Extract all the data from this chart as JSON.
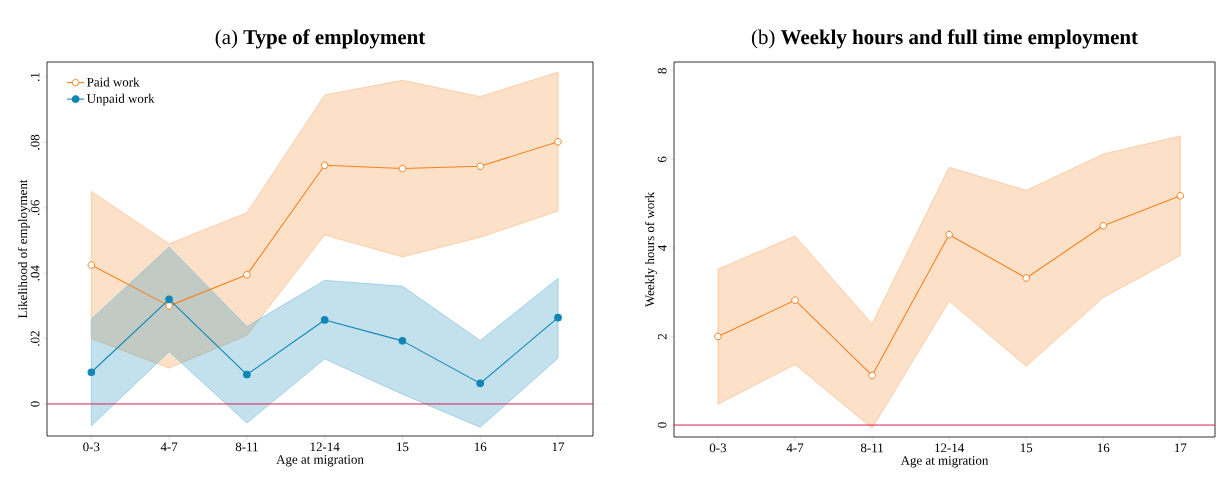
{
  "chart_data": [
    {
      "type": "line",
      "title": "(a) **Type of employment**",
      "xlabel": "Age at migration",
      "ylabel": "Likelihood of employment",
      "categories": [
        "0-3",
        "4-7",
        "8-11",
        "12-14",
        "15",
        "16",
        "17"
      ],
      "series": [
        {
          "name": "Paid work",
          "color": "#f58220",
          "values": [
            0.0425,
            0.03,
            0.0395,
            0.073,
            0.072,
            0.0727,
            0.0802
          ],
          "lower": [
            0.02,
            0.011,
            0.021,
            0.0517,
            0.045,
            0.051,
            0.059
          ],
          "upper": [
            0.065,
            0.049,
            0.0585,
            0.0945,
            0.099,
            0.094,
            0.1015
          ]
        },
        {
          "name": "Unpaid work",
          "color": "#0f86b6",
          "values": [
            0.0097,
            0.032,
            0.009,
            0.0257,
            0.0193,
            0.0063,
            0.0264
          ],
          "lower": [
            -0.0067,
            0.016,
            -0.0058,
            0.0138,
            0.003,
            -0.0071,
            0.014
          ],
          "upper": [
            0.026,
            0.048,
            0.0237,
            0.0378,
            0.036,
            0.0194,
            0.0384
          ]
        }
      ],
      "ylim": [
        -0.0098,
        0.1046
      ],
      "yticks": [
        {
          "value": 0,
          "label": "0"
        },
        {
          "value": 0.02,
          "label": ".02"
        },
        {
          "value": 0.04,
          "label": ".04"
        },
        {
          "value": 0.06,
          "label": ".06"
        },
        {
          "value": 0.08,
          "label": ".08"
        },
        {
          "value": 0.1,
          "label": ".1"
        }
      ],
      "ref_lines": [
        {
          "axis": "y",
          "value": 0,
          "color": "#d6204f"
        }
      ],
      "grid": false,
      "legend": "top left",
      "marker": "circle",
      "line_style": "solid"
    },
    {
      "type": "line",
      "title": "(b) **Weekly hours and full time employment**",
      "xlabel": "Age at migration",
      "ylabel": "Weekly hours of work",
      "categories": [
        "0-3",
        "4-7",
        "8-11",
        "12-14",
        "15",
        "16",
        "17"
      ],
      "series": [
        {
          "color": "#f58220",
          "values": [
            2.0,
            2.82,
            1.12,
            4.3,
            3.32,
            4.5,
            5.18
          ],
          "lower": [
            0.47,
            1.37,
            -0.07,
            2.8,
            1.33,
            2.88,
            3.83
          ],
          "upper": [
            3.52,
            4.27,
            2.28,
            5.82,
            5.3,
            6.12,
            6.53
          ]
        }
      ],
      "ylim": [
        -0.27,
        8.2
      ],
      "yticks": [
        0,
        2,
        4,
        6,
        8
      ],
      "ref_lines": [
        {
          "axis": "y",
          "value": 0,
          "color": "#d6204f"
        }
      ],
      "grid": false,
      "marker": "circle",
      "line_style": "solid"
    }
  ]
}
